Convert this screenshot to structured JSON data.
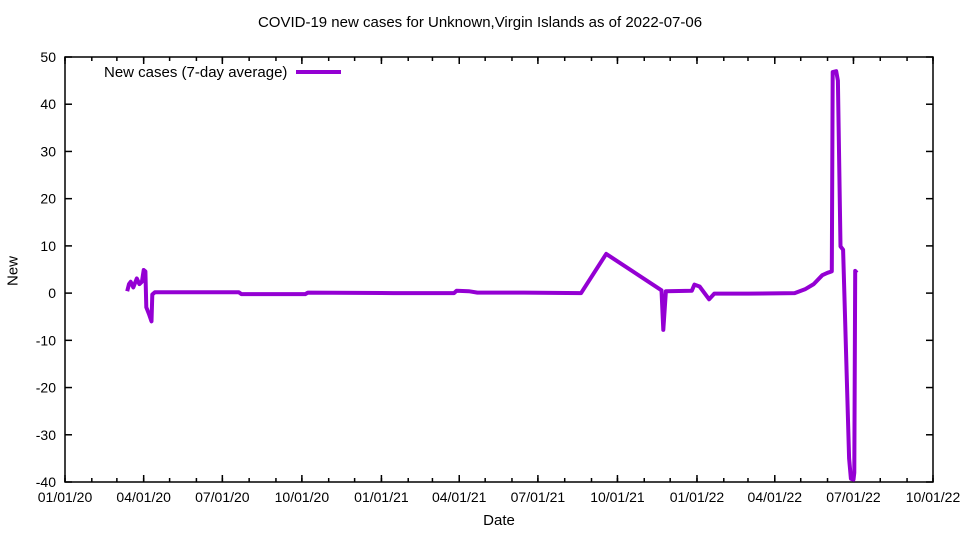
{
  "chart_data": {
    "type": "line",
    "title": "COVID-19 new cases for Unknown,Virgin Islands as of 2022-07-06",
    "xlabel": "Date",
    "ylabel": "New",
    "x_range": [
      "2020-01-01",
      "2022-10-01"
    ],
    "y_range": [
      -40,
      50
    ],
    "y_ticks": [
      -40,
      -30,
      -20,
      -10,
      0,
      10,
      20,
      30,
      40,
      50
    ],
    "x_major_ticks": [
      {
        "date": "2020-01-01",
        "label": "01/01/20"
      },
      {
        "date": "2020-04-01",
        "label": "04/01/20"
      },
      {
        "date": "2020-07-01",
        "label": "07/01/20"
      },
      {
        "date": "2020-10-01",
        "label": "10/01/20"
      },
      {
        "date": "2021-01-01",
        "label": "01/01/21"
      },
      {
        "date": "2021-04-01",
        "label": "04/01/21"
      },
      {
        "date": "2021-07-01",
        "label": "07/01/21"
      },
      {
        "date": "2021-10-01",
        "label": "10/01/21"
      },
      {
        "date": "2022-01-01",
        "label": "01/01/22"
      },
      {
        "date": "2022-04-01",
        "label": "04/01/22"
      },
      {
        "date": "2022-07-01",
        "label": "07/01/22"
      },
      {
        "date": "2022-10-01",
        "label": "10/01/22"
      }
    ],
    "x_minor_tick_interval": "monthly",
    "grid": false,
    "legend_position": "top-left-inside",
    "background_color": "#ffffff",
    "axis_color": "#000000",
    "series": [
      {
        "name": "New cases (7-day average)",
        "color": "#9400D3",
        "line_width": 4,
        "points": [
          [
            "2020-03-13",
            0.4
          ],
          [
            "2020-03-15",
            1.9
          ],
          [
            "2020-03-17",
            2.4
          ],
          [
            "2020-03-20",
            1.2
          ],
          [
            "2020-03-24",
            3.1
          ],
          [
            "2020-03-27",
            1.9
          ],
          [
            "2020-03-30",
            2.4
          ],
          [
            "2020-04-01",
            4.9
          ],
          [
            "2020-04-03",
            4.6
          ],
          [
            "2020-04-04",
            -3.0
          ],
          [
            "2020-04-07",
            -4.4
          ],
          [
            "2020-04-10",
            -6.0
          ],
          [
            "2020-04-11",
            -0.3
          ],
          [
            "2020-04-14",
            0.2
          ],
          [
            "2020-07-20",
            0.2
          ],
          [
            "2020-07-23",
            -0.2
          ],
          [
            "2020-10-05",
            -0.2
          ],
          [
            "2020-10-08",
            0.1
          ],
          [
            "2021-01-15",
            0.0
          ],
          [
            "2021-03-26",
            0.0
          ],
          [
            "2021-03-29",
            0.5
          ],
          [
            "2021-04-12",
            0.4
          ],
          [
            "2021-04-22",
            0.1
          ],
          [
            "2021-06-15",
            0.1
          ],
          [
            "2021-08-20",
            0.0
          ],
          [
            "2021-09-18",
            8.3
          ],
          [
            "2021-11-21",
            0.6
          ],
          [
            "2021-11-23",
            -7.8
          ],
          [
            "2021-11-26",
            0.4
          ],
          [
            "2021-12-26",
            0.5
          ],
          [
            "2021-12-29",
            1.8
          ],
          [
            "2022-01-04",
            1.4
          ],
          [
            "2022-01-15",
            -1.3
          ],
          [
            "2022-01-21",
            -0.1
          ],
          [
            "2022-03-01",
            -0.1
          ],
          [
            "2022-04-24",
            0.0
          ],
          [
            "2022-05-06",
            0.8
          ],
          [
            "2022-05-16",
            1.9
          ],
          [
            "2022-05-26",
            3.8
          ],
          [
            "2022-06-01",
            4.3
          ],
          [
            "2022-06-06",
            4.6
          ],
          [
            "2022-06-07",
            46.8
          ],
          [
            "2022-06-11",
            47.0
          ],
          [
            "2022-06-13",
            45.0
          ],
          [
            "2022-06-16",
            9.9
          ],
          [
            "2022-06-19",
            9.2
          ],
          [
            "2022-06-26",
            -35.0
          ],
          [
            "2022-06-28",
            -39.3
          ],
          [
            "2022-07-01",
            -39.5
          ],
          [
            "2022-07-02",
            -38.0
          ],
          [
            "2022-07-03",
            4.7
          ],
          [
            "2022-07-05",
            4.3
          ]
        ]
      }
    ]
  }
}
